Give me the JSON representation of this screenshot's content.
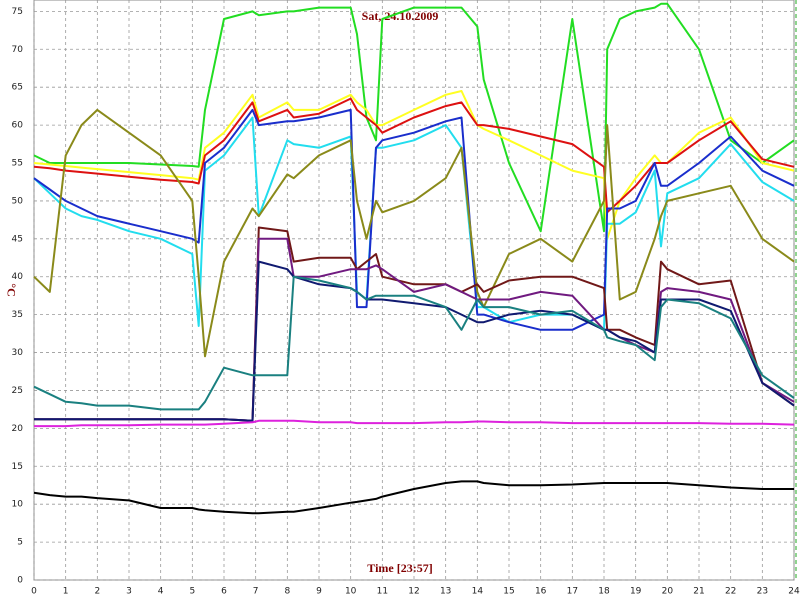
{
  "chart_data": {
    "type": "line",
    "title": "Sat, 24.10.2009",
    "xlabel": "Time [23:57]",
    "ylabel": "°C",
    "xlim": [
      0,
      24
    ],
    "xticks": [
      0,
      1,
      2,
      3,
      4,
      5,
      6,
      7,
      8,
      9,
      10,
      11,
      12,
      13,
      14,
      15,
      16,
      17,
      18,
      19,
      20,
      21,
      22,
      23,
      24
    ],
    "ylim": [
      0,
      76.5
    ],
    "yticks": [
      0,
      5,
      10,
      15,
      20,
      25,
      30,
      35,
      40,
      45,
      50,
      55,
      60,
      65,
      70,
      75
    ],
    "grid": true,
    "x": [
      0,
      0.5,
      1,
      1.5,
      2,
      3,
      4,
      5,
      5.2,
      5.4,
      6,
      6.9,
      7.1,
      8,
      8.2,
      9,
      10,
      10.2,
      10.5,
      10.8,
      11,
      12,
      13,
      13.5,
      14,
      14.2,
      15,
      16,
      17,
      18,
      18.1,
      18.5,
      19,
      19.6,
      19.8,
      20,
      21,
      22,
      23,
      24
    ],
    "series": [
      {
        "color": "#22dd22",
        "values": [
          56,
          55,
          55,
          55,
          55,
          55,
          54.8,
          54.6,
          54.5,
          62,
          74,
          75,
          74.5,
          75,
          75,
          75.5,
          75.5,
          72,
          61,
          58,
          74,
          75.5,
          75.5,
          75.5,
          73,
          66,
          55,
          46,
          74,
          46,
          70,
          74,
          75,
          75.5,
          76,
          76,
          70,
          58,
          55,
          58
        ]
      },
      {
        "color": "#ffff22",
        "values": [
          55,
          54.8,
          54.6,
          54.4,
          54.2,
          53.8,
          53.4,
          53,
          52.8,
          57,
          59,
          64,
          61,
          63,
          62,
          62,
          64,
          63,
          62,
          60,
          60,
          62,
          64,
          64.5,
          60,
          59.5,
          58,
          56,
          54,
          53,
          45,
          50,
          53,
          56,
          55,
          55,
          59,
          61,
          55,
          54
        ]
      },
      {
        "color": "#dd1111",
        "values": [
          54.5,
          54.3,
          54,
          53.8,
          53.6,
          53.2,
          52.8,
          52.5,
          52.3,
          56,
          58,
          63,
          60.5,
          62,
          61,
          61.5,
          63.5,
          62,
          61,
          60,
          59,
          61,
          62.5,
          63,
          60,
          60,
          59.5,
          58.5,
          57.5,
          54.5,
          48.5,
          50,
          52,
          55,
          55,
          55,
          58,
          60.5,
          55.5,
          54.5
        ]
      },
      {
        "color": "#22ddee",
        "values": [
          53,
          51,
          49,
          48,
          47.5,
          46,
          45,
          43,
          33.5,
          54,
          56,
          61,
          48,
          58,
          57.5,
          57,
          58.5,
          38,
          37,
          57,
          57,
          58,
          60,
          57,
          36,
          36,
          34,
          35,
          35,
          33,
          47,
          47,
          48.5,
          54,
          44,
          51,
          53,
          57.5,
          52.5,
          50
        ]
      },
      {
        "color": "#1a2ecc",
        "values": [
          53,
          51.5,
          50,
          49,
          48,
          47,
          46,
          45,
          44.5,
          55,
          57,
          62,
          60,
          60.5,
          60.5,
          61,
          62,
          36,
          36,
          57,
          58,
          59,
          60.5,
          61,
          35,
          35,
          34,
          33,
          33,
          35,
          49,
          49,
          50,
          55,
          52,
          52,
          55,
          58.5,
          54,
          52
        ]
      },
      {
        "color": "#8a8a1a",
        "values": [
          40,
          38,
          56,
          60,
          62,
          59,
          56,
          50,
          40,
          29.5,
          42,
          49,
          48,
          53.5,
          53,
          56,
          58,
          50,
          45,
          50,
          48.5,
          50,
          53,
          57,
          38,
          36,
          43,
          45,
          42,
          50,
          60,
          37,
          38,
          45,
          48,
          50,
          51,
          52,
          45,
          42
        ]
      },
      {
        "color": "#701818",
        "values": [
          21.2,
          21.2,
          21.2,
          21.2,
          21.2,
          21.2,
          21.2,
          21.2,
          21.2,
          21.2,
          21.2,
          21,
          46.5,
          46,
          42,
          42.5,
          42.5,
          41,
          42,
          43,
          40,
          39,
          39,
          38,
          39,
          38,
          39.5,
          40,
          40,
          38.5,
          33,
          33,
          32,
          31,
          42,
          41,
          39,
          39.5,
          26,
          23
        ]
      },
      {
        "color": "#701a80",
        "values": [
          21.2,
          21.2,
          21.2,
          21.2,
          21.2,
          21.2,
          21.2,
          21.2,
          21.2,
          21.2,
          21.2,
          21,
          45,
          45,
          40,
          40,
          41,
          41,
          41,
          41.5,
          41,
          38,
          39,
          38,
          37,
          37,
          37,
          38,
          37.5,
          33,
          33,
          32,
          31,
          30,
          38,
          38.5,
          38,
          37,
          26,
          23.5
        ]
      },
      {
        "color": "#101a70",
        "values": [
          21.2,
          21.2,
          21.2,
          21.2,
          21.2,
          21.2,
          21.2,
          21.2,
          21.2,
          21.2,
          21.2,
          21,
          42,
          41,
          40,
          39,
          38.5,
          38,
          37,
          37,
          37,
          36.5,
          36,
          35,
          34,
          34,
          35,
          35.5,
          35,
          33,
          33,
          32,
          31.5,
          30,
          37,
          37,
          37,
          35.5,
          26,
          23
        ]
      },
      {
        "color": "#1a8080",
        "values": [
          25.5,
          24.5,
          23.5,
          23.3,
          23,
          23,
          22.5,
          22.5,
          22.5,
          23.5,
          28,
          27,
          27,
          27,
          40,
          39.5,
          38.5,
          38,
          37,
          37.5,
          37.5,
          37.5,
          36,
          33,
          37,
          36,
          36,
          35,
          35.5,
          33,
          32,
          31.5,
          31,
          29,
          36,
          37,
          36.5,
          34.5,
          27,
          24
        ]
      },
      {
        "color": "#dd22dd",
        "values": [
          20.3,
          20.3,
          20.3,
          20.4,
          20.4,
          20.4,
          20.5,
          20.5,
          20.5,
          20.5,
          20.6,
          20.8,
          21,
          21,
          21,
          20.8,
          20.8,
          20.7,
          20.7,
          20.7,
          20.7,
          20.7,
          20.8,
          20.8,
          20.9,
          20.9,
          20.8,
          20.8,
          20.7,
          20.7,
          20.7,
          20.7,
          20.7,
          20.7,
          20.7,
          20.7,
          20.7,
          20.6,
          20.6,
          20.5
        ]
      },
      {
        "color": "#000000",
        "values": [
          11.5,
          11.2,
          11,
          11,
          10.8,
          10.5,
          9.5,
          9.5,
          9.3,
          9.2,
          9,
          8.8,
          8.8,
          9,
          9,
          9.5,
          10.2,
          10.3,
          10.5,
          10.7,
          11,
          12,
          12.8,
          13,
          13,
          12.8,
          12.5,
          12.5,
          12.6,
          12.8,
          12.8,
          12.8,
          12.8,
          12.8,
          12.8,
          12.8,
          12.5,
          12.2,
          12,
          12
        ]
      }
    ]
  }
}
